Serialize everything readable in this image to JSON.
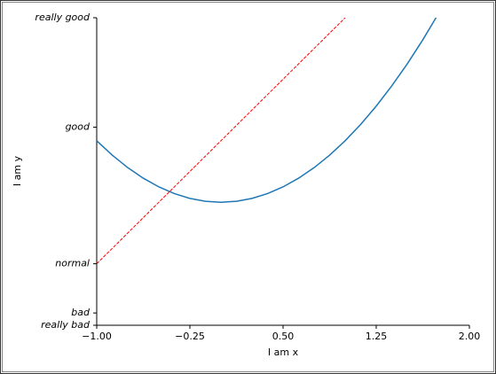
{
  "chart_data": {
    "type": "line",
    "xlabel": "I am x",
    "ylabel": "I am y",
    "xlim": [
      -1,
      2
    ],
    "ylim": [
      -2,
      3
    ],
    "xticks": [
      {
        "value": -1,
        "label": "−1.00"
      },
      {
        "value": -0.25,
        "label": "−0.25"
      },
      {
        "value": 0.5,
        "label": "0.50"
      },
      {
        "value": 1.25,
        "label": "1.25"
      },
      {
        "value": 2,
        "label": "2.00"
      }
    ],
    "yticks": [
      {
        "value": -2,
        "label": "really bad"
      },
      {
        "value": -1.8,
        "label": "bad"
      },
      {
        "value": -1,
        "label": "normal"
      },
      {
        "value": 1.22,
        "label": "good"
      },
      {
        "value": 3,
        "label": "really good"
      }
    ],
    "series": [
      {
        "color": "#1f77b4",
        "dash": false,
        "x": [
          -1,
          -0.875,
          -0.75,
          -0.625,
          -0.5,
          -0.375,
          -0.25,
          -0.125,
          0,
          0.125,
          0.25,
          0.375,
          0.5,
          0.625,
          0.75,
          0.875,
          1,
          1.125,
          1.25,
          1.375,
          1.5,
          1.625,
          1.75
        ],
        "values": [
          1,
          0.7656,
          0.5625,
          0.3906,
          0.25,
          0.1406,
          0.0625,
          0.0156,
          0,
          0.0156,
          0.0625,
          0.1406,
          0.25,
          0.3906,
          0.5625,
          0.7656,
          1,
          1.2656,
          1.5625,
          1.8906,
          2.25,
          2.6406,
          3.0625
        ]
      },
      {
        "color": "#ff0000",
        "dash": true,
        "x": [
          -1,
          1
        ],
        "values": [
          -1,
          3
        ]
      }
    ]
  }
}
